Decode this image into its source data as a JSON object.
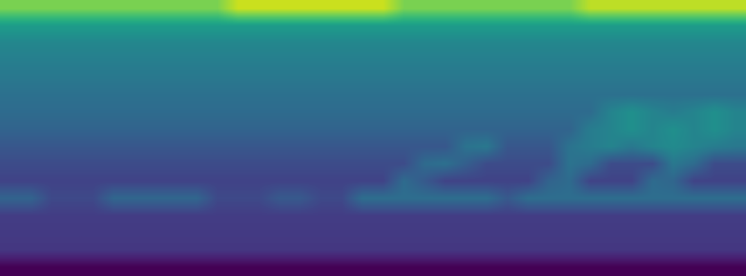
{
  "chart_data": {
    "type": "heatmap",
    "color": "viridis",
    "tick_labels": false,
    "color_range": [
      0,
      1
    ],
    "cells": [
      [
        0.8,
        0.8,
        0.8,
        0.8,
        0.8,
        0.8,
        0.8,
        0.8,
        0.8,
        0.8,
        0.8,
        0.92,
        0.92,
        0.92,
        0.92,
        0.92,
        0.92,
        0.92,
        0.92,
        0.8,
        0.8,
        0.8,
        0.8,
        0.8,
        0.8,
        0.8,
        0.8,
        0.8,
        0.9,
        0.9,
        0.9,
        0.9,
        0.9,
        0.9,
        0.9,
        0.9
      ],
      [
        0.55,
        0.55,
        0.55,
        0.55,
        0.55,
        0.55,
        0.55,
        0.55,
        0.55,
        0.55,
        0.55,
        0.55,
        0.55,
        0.55,
        0.55,
        0.55,
        0.55,
        0.55,
        0.55,
        0.55,
        0.55,
        0.55,
        0.55,
        0.55,
        0.55,
        0.55,
        0.55,
        0.55,
        0.55,
        0.55,
        0.55,
        0.55,
        0.55,
        0.55,
        0.55,
        0.55
      ],
      [
        0.46,
        0.46,
        0.46,
        0.46,
        0.46,
        0.46,
        0.46,
        0.46,
        0.46,
        0.46,
        0.46,
        0.46,
        0.46,
        0.46,
        0.46,
        0.46,
        0.46,
        0.46,
        0.46,
        0.46,
        0.46,
        0.46,
        0.46,
        0.46,
        0.46,
        0.46,
        0.46,
        0.46,
        0.46,
        0.46,
        0.46,
        0.46,
        0.46,
        0.46,
        0.46,
        0.46
      ],
      [
        0.43,
        0.43,
        0.43,
        0.43,
        0.43,
        0.43,
        0.43,
        0.43,
        0.43,
        0.43,
        0.43,
        0.43,
        0.43,
        0.43,
        0.43,
        0.43,
        0.43,
        0.43,
        0.43,
        0.43,
        0.43,
        0.43,
        0.43,
        0.43,
        0.43,
        0.43,
        0.43,
        0.43,
        0.43,
        0.43,
        0.43,
        0.43,
        0.43,
        0.43,
        0.43,
        0.43
      ],
      [
        0.4,
        0.4,
        0.4,
        0.4,
        0.4,
        0.4,
        0.4,
        0.4,
        0.4,
        0.4,
        0.4,
        0.4,
        0.4,
        0.4,
        0.4,
        0.4,
        0.4,
        0.4,
        0.4,
        0.4,
        0.4,
        0.4,
        0.4,
        0.4,
        0.4,
        0.4,
        0.4,
        0.4,
        0.4,
        0.4,
        0.4,
        0.4,
        0.4,
        0.4,
        0.4,
        0.4
      ],
      [
        0.37,
        0.37,
        0.37,
        0.37,
        0.37,
        0.37,
        0.37,
        0.37,
        0.37,
        0.37,
        0.37,
        0.37,
        0.37,
        0.37,
        0.37,
        0.37,
        0.37,
        0.37,
        0.37,
        0.37,
        0.37,
        0.37,
        0.37,
        0.37,
        0.37,
        0.37,
        0.37,
        0.37,
        0.37,
        0.37,
        0.37,
        0.37,
        0.37,
        0.37,
        0.37,
        0.37
      ],
      [
        0.35,
        0.35,
        0.35,
        0.35,
        0.35,
        0.35,
        0.35,
        0.35,
        0.35,
        0.35,
        0.35,
        0.35,
        0.35,
        0.35,
        0.35,
        0.35,
        0.35,
        0.35,
        0.35,
        0.35,
        0.35,
        0.35,
        0.35,
        0.35,
        0.35,
        0.35,
        0.35,
        0.35,
        0.35,
        0.45,
        0.5,
        0.45,
        0.42,
        0.45,
        0.5,
        0.45
      ],
      [
        0.32,
        0.32,
        0.32,
        0.32,
        0.32,
        0.32,
        0.32,
        0.32,
        0.32,
        0.32,
        0.32,
        0.32,
        0.32,
        0.32,
        0.32,
        0.32,
        0.32,
        0.32,
        0.32,
        0.32,
        0.32,
        0.32,
        0.32,
        0.32,
        0.32,
        0.32,
        0.32,
        0.32,
        0.42,
        0.45,
        0.5,
        0.45,
        0.5,
        0.45,
        0.5,
        0.45
      ],
      [
        0.27,
        0.27,
        0.27,
        0.27,
        0.27,
        0.27,
        0.27,
        0.27,
        0.27,
        0.27,
        0.27,
        0.27,
        0.27,
        0.27,
        0.27,
        0.27,
        0.27,
        0.27,
        0.27,
        0.27,
        0.27,
        0.27,
        0.38,
        0.4,
        0.27,
        0.27,
        0.27,
        0.38,
        0.42,
        0.45,
        0.4,
        0.45,
        0.48,
        0.45,
        0.42,
        0.4
      ],
      [
        0.23,
        0.23,
        0.23,
        0.23,
        0.23,
        0.23,
        0.23,
        0.23,
        0.23,
        0.23,
        0.23,
        0.23,
        0.23,
        0.23,
        0.23,
        0.23,
        0.23,
        0.23,
        0.23,
        0.23,
        0.35,
        0.37,
        0.3,
        0.23,
        0.23,
        0.23,
        0.23,
        0.38,
        0.35,
        0.23,
        0.23,
        0.23,
        0.4,
        0.35,
        0.23,
        0.23
      ],
      [
        0.2,
        0.2,
        0.2,
        0.2,
        0.2,
        0.2,
        0.2,
        0.2,
        0.2,
        0.2,
        0.2,
        0.2,
        0.2,
        0.2,
        0.2,
        0.2,
        0.2,
        0.2,
        0.2,
        0.35,
        0.28,
        0.2,
        0.2,
        0.2,
        0.2,
        0.2,
        0.32,
        0.35,
        0.2,
        0.2,
        0.2,
        0.35,
        0.33,
        0.2,
        0.2,
        0.2
      ],
      [
        0.32,
        0.32,
        0.22,
        0.22,
        0.22,
        0.33,
        0.33,
        0.33,
        0.33,
        0.33,
        0.22,
        0.22,
        0.22,
        0.28,
        0.28,
        0.22,
        0.22,
        0.36,
        0.36,
        0.36,
        0.36,
        0.36,
        0.36,
        0.36,
        0.28,
        0.36,
        0.36,
        0.36,
        0.36,
        0.36,
        0.36,
        0.36,
        0.36,
        0.36,
        0.36,
        0.36
      ],
      [
        0.18,
        0.18,
        0.18,
        0.18,
        0.18,
        0.18,
        0.18,
        0.18,
        0.18,
        0.18,
        0.18,
        0.18,
        0.18,
        0.18,
        0.18,
        0.18,
        0.18,
        0.18,
        0.18,
        0.18,
        0.18,
        0.18,
        0.18,
        0.18,
        0.18,
        0.18,
        0.18,
        0.18,
        0.18,
        0.18,
        0.18,
        0.18,
        0.18,
        0.18,
        0.18,
        0.18
      ],
      [
        0.17,
        0.17,
        0.17,
        0.17,
        0.17,
        0.17,
        0.17,
        0.17,
        0.17,
        0.17,
        0.17,
        0.17,
        0.17,
        0.17,
        0.17,
        0.17,
        0.17,
        0.17,
        0.17,
        0.17,
        0.17,
        0.17,
        0.17,
        0.17,
        0.17,
        0.17,
        0.17,
        0.17,
        0.17,
        0.17,
        0.17,
        0.17,
        0.17,
        0.17,
        0.17,
        0.17
      ],
      [
        0.16,
        0.16,
        0.16,
        0.16,
        0.16,
        0.16,
        0.16,
        0.16,
        0.16,
        0.16,
        0.16,
        0.16,
        0.16,
        0.16,
        0.16,
        0.16,
        0.16,
        0.16,
        0.16,
        0.16,
        0.16,
        0.16,
        0.16,
        0.16,
        0.16,
        0.16,
        0.16,
        0.16,
        0.16,
        0.16,
        0.16,
        0.16,
        0.16,
        0.16,
        0.16,
        0.16
      ],
      [
        0.0,
        0.0,
        0.0,
        0.0,
        0.0,
        0.0,
        0.0,
        0.0,
        0.0,
        0.0,
        0.0,
        0.0,
        0.0,
        0.0,
        0.0,
        0.0,
        0.0,
        0.0,
        0.0,
        0.0,
        0.0,
        0.0,
        0.0,
        0.0,
        0.0,
        0.0,
        0.0,
        0.0,
        0.0,
        0.0,
        0.0,
        0.0,
        0.0,
        0.0,
        0.0,
        0.0
      ]
    ]
  }
}
